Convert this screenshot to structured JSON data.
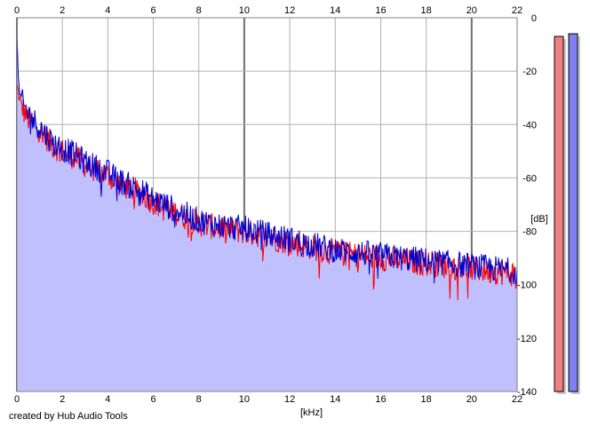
{
  "chart_data": {
    "type": "area",
    "xlabel": "[kHz]",
    "ylabel": "[dB]",
    "xlim": [
      0,
      22
    ],
    "ylim": [
      -140,
      0
    ],
    "x_ticks": [
      0,
      2,
      4,
      6,
      8,
      10,
      12,
      14,
      16,
      18,
      20,
      22
    ],
    "y_ticks": [
      0,
      -20,
      -40,
      -60,
      -80,
      -100,
      -120,
      -140
    ],
    "grid": true,
    "series": [
      {
        "color": "#ff0000",
        "x": [
          0,
          0.1,
          0.3,
          0.5,
          0.8,
          1,
          1.3,
          1.6,
          2,
          2.5,
          3,
          3.5,
          4,
          4.5,
          5,
          5.5,
          6,
          6.5,
          7,
          7.5,
          8,
          9,
          10,
          11,
          12,
          13,
          14,
          15,
          16,
          17,
          18,
          19,
          20,
          21,
          22
        ],
        "values": [
          -25,
          -30,
          -35,
          -38,
          -40,
          -42,
          -45,
          -48,
          -50,
          -52,
          -55,
          -57,
          -59,
          -62,
          -64,
          -66,
          -69,
          -71,
          -73,
          -75,
          -77,
          -79,
          -80,
          -82,
          -84,
          -86,
          -88,
          -89,
          -90,
          -91,
          -92,
          -93,
          -94,
          -95,
          -96
        ]
      },
      {
        "color": "#0000cc",
        "x": [
          0,
          0.1,
          0.3,
          0.5,
          0.8,
          1,
          1.3,
          1.6,
          2,
          2.5,
          3,
          3.5,
          4,
          4.5,
          5,
          5.5,
          6,
          6.5,
          7,
          7.5,
          8,
          9,
          10,
          11,
          12,
          13,
          14,
          15,
          16,
          17,
          18,
          19,
          20,
          21,
          22
        ],
        "values": [
          -8,
          -28,
          -33,
          -36,
          -39,
          -41,
          -44,
          -47,
          -49,
          -51,
          -54,
          -56,
          -58,
          -61,
          -63,
          -65,
          -68,
          -70,
          -72,
          -74,
          -76,
          -78,
          -79,
          -81,
          -83,
          -85,
          -87,
          -88,
          -89,
          -90,
          -91,
          -92,
          -93,
          -94,
          -95
        ]
      }
    ],
    "meters": [
      {
        "color": "#f08080",
        "level_db": -7
      },
      {
        "color": "#8080f0",
        "level_db": -6
      }
    ],
    "fill_color": "#c0c0ff"
  },
  "footer": {
    "credit": "created by Hub Audio Tools"
  }
}
